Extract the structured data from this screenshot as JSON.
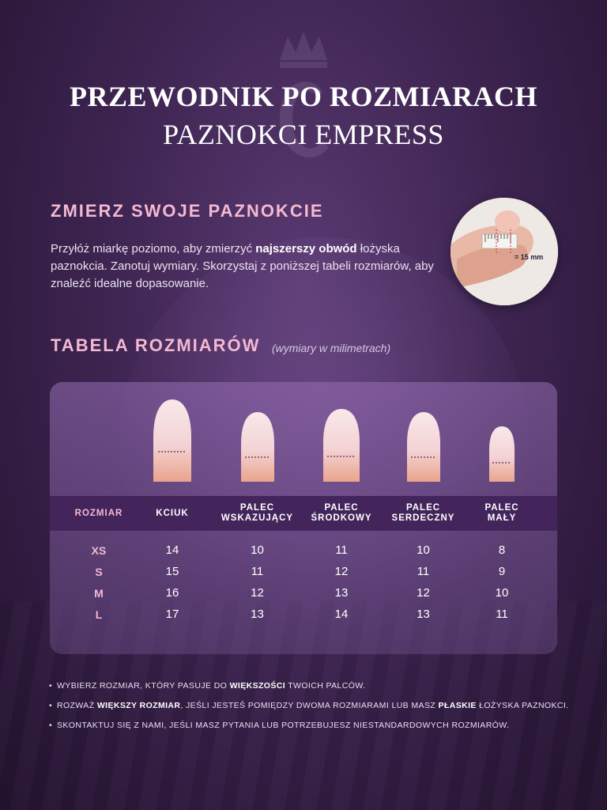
{
  "header": {
    "title_line1": "PRZEWODNIK PO ROZMIARACH",
    "title_line2": "PAZNOKCI EMPRESS"
  },
  "measure": {
    "heading": "ZMIERZ SWOJE PAZNOKCIE",
    "text_a": "Przyłóż miarkę poziomo, aby zmierzyć ",
    "text_bold": "najszerszy obwód",
    "text_b": " łożyska paznokcia. Zanotuj wymiary. Skorzystaj z poniższej tabeli rozmiarów, aby znaleźć idealne dopasowanie.",
    "photo_label": "= 15 mm"
  },
  "table": {
    "heading": "TABELA ROZMIARÓW",
    "note": "(wymiary w milimetrach)",
    "columns": [
      {
        "line1": "ROZMIAR",
        "line2": ""
      },
      {
        "line1": "KCIUK",
        "line2": ""
      },
      {
        "line1": "PALEC",
        "line2": "WSKAZUJĄCY"
      },
      {
        "line1": "PALEC",
        "line2": "ŚRODKOWY"
      },
      {
        "line1": "PALEC",
        "line2": "SERDECZNY"
      },
      {
        "line1": "PALEC",
        "line2": "MAŁY"
      }
    ],
    "rows": [
      {
        "size": "XS",
        "values": [
          "14",
          "10",
          "11",
          "10",
          "8"
        ]
      },
      {
        "size": "S",
        "values": [
          "15",
          "11",
          "12",
          "11",
          "9"
        ]
      },
      {
        "size": "M",
        "values": [
          "16",
          "12",
          "13",
          "12",
          "10"
        ]
      },
      {
        "size": "L",
        "values": [
          "17",
          "13",
          "14",
          "13",
          "11"
        ]
      }
    ]
  },
  "notes": [
    {
      "a": "WYBIERZ ROZMIAR, KTÓRY PASUJE DO ",
      "b": "WIĘKSZOŚCI",
      "c": " TWOICH PALCÓW.",
      "d": "",
      "e": ""
    },
    {
      "a": "ROZWAŻ ",
      "b": "WIĘKSZY ROZMIAR",
      "c": ", JEŚLI JESTEŚ POMIĘDZY DWOMA ROZMIARAMI LUB MASZ ",
      "d": "PŁASKIE",
      "e": " ŁOŻYSKA PAZNOKCI."
    },
    {
      "a": "SKONTAKTUJ SIĘ Z NAMI, JEŚLI MASZ PYTANIA LUB POTRZEBUJESZ NIESTANDARDOWYCH ROZMIARÓW.",
      "b": "",
      "c": "",
      "d": "",
      "e": ""
    }
  ],
  "colors": {
    "accent_pink": "#f4b9d2",
    "header_bar": "#43255c",
    "nail_tip": "#f6e4e6",
    "nail_base": "#e9a48c"
  }
}
